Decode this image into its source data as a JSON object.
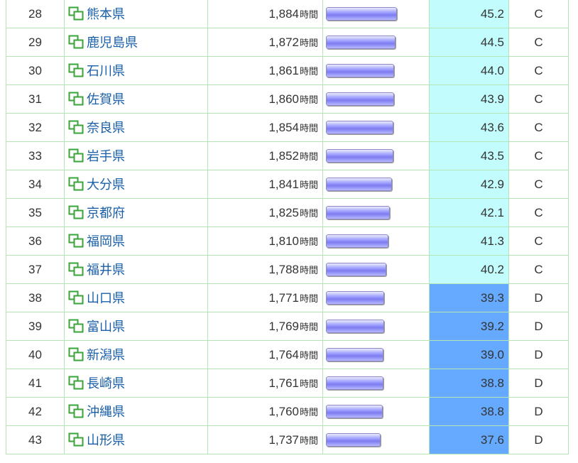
{
  "unit": "時間",
  "bar_max_value": 1884,
  "colors": {
    "grade_C": "#c2fcfc",
    "grade_D": "#66aaff",
    "link": "#1a5fa8",
    "border": "#b5e4b5"
  },
  "icon": "link-window-icon",
  "rows": [
    {
      "rank": "28",
      "name": "熊本県",
      "value": "1,884",
      "hours": 1884,
      "score": "45.2",
      "grade": "C"
    },
    {
      "rank": "29",
      "name": "鹿児島県",
      "value": "1,872",
      "hours": 1872,
      "score": "44.5",
      "grade": "C"
    },
    {
      "rank": "30",
      "name": "石川県",
      "value": "1,861",
      "hours": 1861,
      "score": "44.0",
      "grade": "C"
    },
    {
      "rank": "31",
      "name": "佐賀県",
      "value": "1,860",
      "hours": 1860,
      "score": "43.9",
      "grade": "C"
    },
    {
      "rank": "32",
      "name": "奈良県",
      "value": "1,854",
      "hours": 1854,
      "score": "43.6",
      "grade": "C"
    },
    {
      "rank": "33",
      "name": "岩手県",
      "value": "1,852",
      "hours": 1852,
      "score": "43.5",
      "grade": "C"
    },
    {
      "rank": "34",
      "name": "大分県",
      "value": "1,841",
      "hours": 1841,
      "score": "42.9",
      "grade": "C"
    },
    {
      "rank": "35",
      "name": "京都府",
      "value": "1,825",
      "hours": 1825,
      "score": "42.1",
      "grade": "C"
    },
    {
      "rank": "36",
      "name": "福岡県",
      "value": "1,810",
      "hours": 1810,
      "score": "41.3",
      "grade": "C"
    },
    {
      "rank": "37",
      "name": "福井県",
      "value": "1,788",
      "hours": 1788,
      "score": "40.2",
      "grade": "C"
    },
    {
      "rank": "38",
      "name": "山口県",
      "value": "1,771",
      "hours": 1771,
      "score": "39.3",
      "grade": "D"
    },
    {
      "rank": "39",
      "name": "富山県",
      "value": "1,769",
      "hours": 1769,
      "score": "39.2",
      "grade": "D"
    },
    {
      "rank": "40",
      "name": "新潟県",
      "value": "1,764",
      "hours": 1764,
      "score": "39.0",
      "grade": "D"
    },
    {
      "rank": "41",
      "name": "長崎県",
      "value": "1,761",
      "hours": 1761,
      "score": "38.8",
      "grade": "D"
    },
    {
      "rank": "42",
      "name": "沖縄県",
      "value": "1,760",
      "hours": 1760,
      "score": "38.8",
      "grade": "D"
    },
    {
      "rank": "43",
      "name": "山形県",
      "value": "1,737",
      "hours": 1737,
      "score": "37.6",
      "grade": "D"
    }
  ]
}
